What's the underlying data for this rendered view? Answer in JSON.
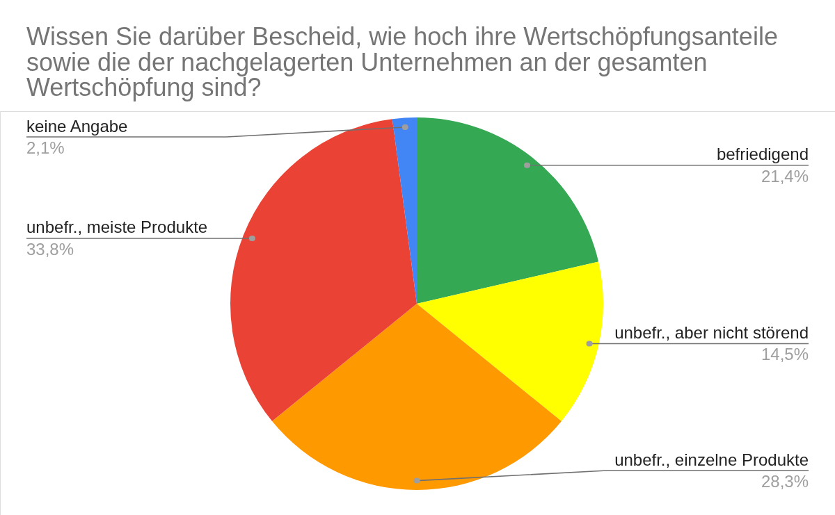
{
  "chart_data": {
    "type": "pie",
    "title": "Wissen Sie darüber Bescheid, wie hoch ihre Wertschöpfungsanteile sowie die der nachgelagerten Unternehmen an der gesamten Wertschöpfung sind?",
    "categories": [
      "befriedigend",
      "unbefr., aber nicht störend",
      "unbefr., einzelne Produkte",
      "unbefr., meiste Produkte",
      "keine Angabe"
    ],
    "values": [
      21.4,
      14.5,
      28.3,
      33.8,
      2.1
    ],
    "colors": [
      "#34a853",
      "#ffff00",
      "#ff9900",
      "#ea4335",
      "#4285f4"
    ],
    "value_labels": [
      "21,4%",
      "14,5%",
      "28,3%",
      "33,8%",
      "2,1%"
    ]
  }
}
